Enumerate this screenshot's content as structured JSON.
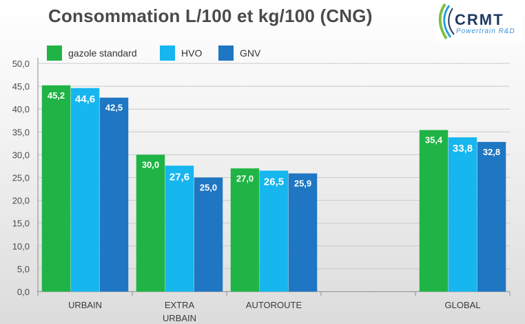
{
  "chart_data": {
    "type": "bar",
    "title": "Consommation L/100 et kg/100 (CNG)",
    "categories": [
      [
        "URBAIN"
      ],
      [
        "EXTRA",
        "URBAIN"
      ],
      [
        "AUTOROUTE"
      ],
      [],
      [
        "GLOBAL"
      ]
    ],
    "series": [
      {
        "name": "gazole standard",
        "color": "#1fb445",
        "values": [
          45.2,
          30.0,
          27.0,
          null,
          35.4
        ],
        "labels": [
          "45,2",
          "30,0",
          "27,0",
          null,
          "35,4"
        ]
      },
      {
        "name": "HVO",
        "color": "#16b6ee",
        "values": [
          44.6,
          27.6,
          26.5,
          null,
          33.8
        ],
        "labels": [
          "44,6",
          "27,6",
          "26,5",
          null,
          "33,8"
        ]
      },
      {
        "name": "GNV",
        "color": "#1f76c2",
        "values": [
          42.5,
          25.0,
          25.9,
          null,
          32.8
        ],
        "labels": [
          "42,5",
          "25,0",
          "25,9",
          null,
          "32,8"
        ]
      }
    ],
    "ylim": [
      0,
      50
    ],
    "yticks": [
      0,
      5,
      10,
      15,
      20,
      25,
      30,
      35,
      40,
      45,
      50
    ],
    "ytick_labels": [
      "0,0",
      "5,0",
      "10,0",
      "15,0",
      "20,0",
      "25,0",
      "30,0",
      "35,0",
      "40,0",
      "45,0",
      "50,0"
    ],
    "grid": true,
    "legend_position": "top-left"
  },
  "logo": {
    "text": "CRMT",
    "subtitle": "Powertrain R&D"
  }
}
